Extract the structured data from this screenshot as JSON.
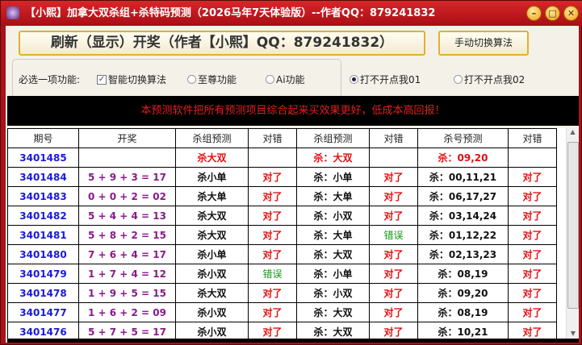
{
  "window": {
    "title": "【小熙】加拿大双杀组+杀特码预测（2026马年7天体验版）--作者QQ：879241832"
  },
  "toolbar": {
    "refresh_label": "刷新（显示）开奖（作者【小熙】QQ：879241832）",
    "switch_label": "手动切换算法"
  },
  "options": {
    "label": "必选一项功能:",
    "smart": "智能切换算法",
    "smart_checked": true,
    "supreme": "至尊功能",
    "ai": "Ai功能",
    "open1": "打不开点我01",
    "open2": "打不开点我02",
    "selected": "打不开点我01"
  },
  "banner": "本预测软件把所有预测项目综合起来买效果更好，低成本高回报！",
  "table": {
    "headers": [
      "期号",
      "开奖",
      "杀组预测",
      "对错",
      "杀组预测",
      "对错",
      "杀号预测",
      "对错"
    ],
    "rows": [
      [
        "3401485",
        "",
        "杀大双",
        "",
        "杀：大双",
        "",
        "杀：09,20",
        ""
      ],
      [
        "3401484",
        "5 + 9 + 3 = 17",
        "杀小单",
        "对了",
        "杀：小单",
        "对了",
        "杀：00,11,21",
        "对了"
      ],
      [
        "3401483",
        "0 + 0 + 2 = 02",
        "杀大单",
        "对了",
        "杀：大单",
        "对了",
        "杀：06,17,27",
        "对了"
      ],
      [
        "3401482",
        "5 + 4 + 4 = 13",
        "杀大双",
        "对了",
        "杀：小双",
        "对了",
        "杀：03,14,24",
        "对了"
      ],
      [
        "3401481",
        "5 + 8 + 2 = 15",
        "杀大双",
        "对了",
        "杀：大单",
        "错误",
        "杀：01,12,22",
        "对了"
      ],
      [
        "3401480",
        "7 + 6 + 4 = 17",
        "杀小单",
        "对了",
        "杀：大双",
        "对了",
        "杀：02,13,23",
        "对了"
      ],
      [
        "3401479",
        "1 + 7 + 4 = 12",
        "杀小双",
        "错误",
        "杀：小单",
        "对了",
        "杀：08,19",
        "对了"
      ],
      [
        "3401478",
        "1 + 9 + 5 = 15",
        "杀大双",
        "对了",
        "杀：小双",
        "对了",
        "杀：09,20",
        "对了"
      ],
      [
        "3401477",
        "1 + 6 + 2 = 09",
        "杀小双",
        "对了",
        "杀：大双",
        "对了",
        "杀：08,19",
        "对了"
      ],
      [
        "3401476",
        "5 + 7 + 5 = 17",
        "杀小双",
        "对了",
        "杀：大双",
        "对了",
        "杀：10,21",
        "对了"
      ]
    ]
  },
  "colors": {
    "title_bar": "#c01a20",
    "issue": "#1a1adc",
    "draw": "#8a1a8a",
    "correct": "#e01010",
    "wrong": "#119911",
    "banner_text": "#e02020"
  }
}
